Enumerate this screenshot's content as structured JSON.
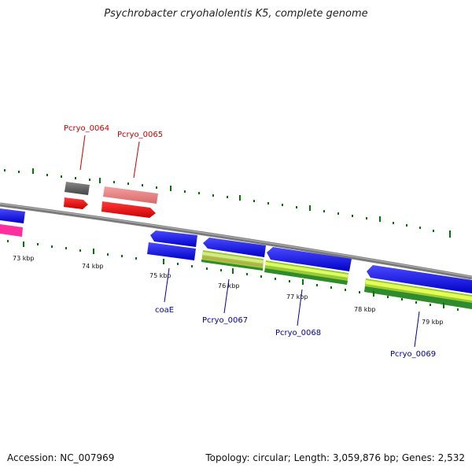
{
  "title": "Psychrobacter cryohalolentis K5, complete genome",
  "footer": {
    "accession": "Accession: NC_007969",
    "summary": "Topology: circular; Length: 3,059,876 bp; Genes: 2,532"
  },
  "scale_labels": [
    "73 kbp",
    "74 kbp",
    "75 kbp",
    "76 kbp",
    "77 kbp",
    "78 kbp",
    "79 kbp"
  ],
  "gene_labels": {
    "top": [
      "Pcryo_0064",
      "Pcryo_0065"
    ],
    "bottom": [
      "coaE",
      "Pcryo_0067",
      "Pcryo_0068",
      "Pcryo_0069"
    ]
  },
  "colors": {
    "forward_cds": "#ff0000",
    "reverse_cds": "#0000ff",
    "forward_analysis": "#ff8080",
    "gray_track": "#555555",
    "backbone": "#888888",
    "tick": "#007700",
    "pink_cds": "#ff1493",
    "green_light": "#ccff44",
    "green_dark": "#228822"
  }
}
